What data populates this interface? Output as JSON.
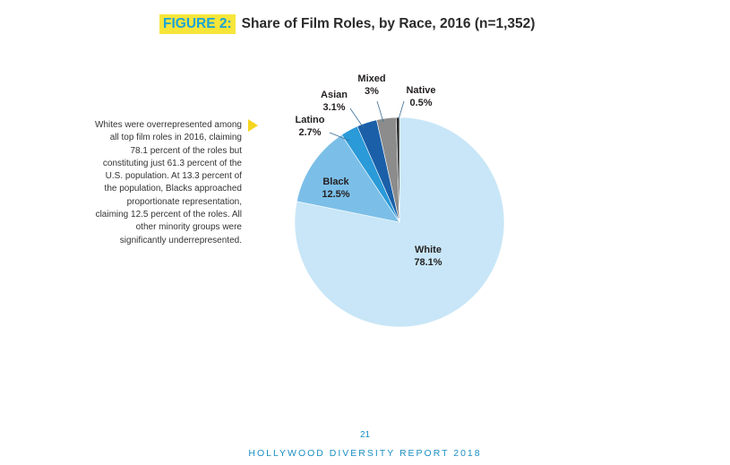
{
  "figure": {
    "badge": "FIGURE 2:",
    "title": "Share of Film Roles, by Race, 2016 (n=1,352)"
  },
  "side_note": "Whites were overrepresented among all top film roles in 2016, claiming 78.1 percent of the roles but constituting just 61.3 percent of the U.S. population. At 13.3 percent of the population, Blacks approached proportionate representation, claiming 12.5 percent of the roles. All other minority groups were significantly underrepresented.",
  "page_number": "21",
  "footer": "HOLLYWOOD DIVERSITY REPORT 2018",
  "chart_data": {
    "type": "pie",
    "title": "Share of Film Roles, by Race, 2016 (n=1,352)",
    "slices": [
      {
        "label": "White",
        "value": 78.1,
        "value_label": "78.1%",
        "color": "#c8e6f7"
      },
      {
        "label": "Black",
        "value": 12.5,
        "value_label": "12.5%",
        "color": "#7bbfe8"
      },
      {
        "label": "Latino",
        "value": 2.7,
        "value_label": "2.7%",
        "color": "#2a9ad8"
      },
      {
        "label": "Asian",
        "value": 3.1,
        "value_label": "3.1%",
        "color": "#1a5fa8"
      },
      {
        "label": "Mixed",
        "value": 3.0,
        "value_label": "3%",
        "color": "#8c8c8c"
      },
      {
        "label": "Native",
        "value": 0.5,
        "value_label": "0.5%",
        "color": "#2b2b2b"
      }
    ]
  }
}
